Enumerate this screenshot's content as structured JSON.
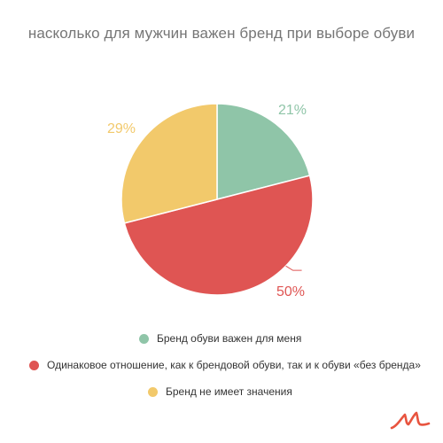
{
  "chart_data": {
    "type": "pie",
    "title": "насколько для мужчин важен бренд при выборе обуви",
    "slices": [
      {
        "name": "Бренд обуви важен для меня",
        "value": 21,
        "label": "21%",
        "color": "#8fc5a8"
      },
      {
        "name": "Одинаковое отношение, как к брендовой обуви, так и к обуви «без бренда»",
        "value": 50,
        "label": "50%",
        "color": "#df5553"
      },
      {
        "name": "Бренд не имеет значения",
        "value": 29,
        "label": "29%",
        "color": "#f2c96b"
      }
    ],
    "legend_position": "bottom"
  },
  "colors": {
    "title": "#757575",
    "legend_text": "#333333",
    "logo": "#e8543f"
  },
  "logo": {
    "icon": "brand-logo-icon"
  }
}
